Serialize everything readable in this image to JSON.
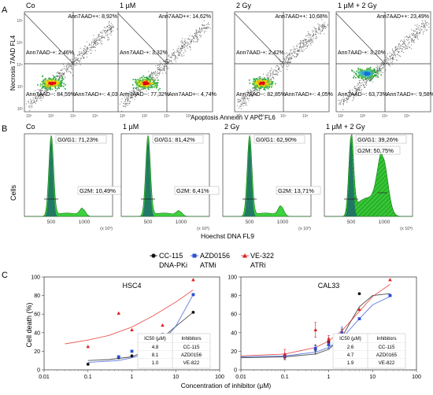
{
  "panel_letters": [
    "A",
    "B",
    "C"
  ],
  "chart_data": [
    {
      "type": "scatter",
      "panel": "A",
      "ylabel": "Necrosis 7AAD FL4",
      "xlabel": "Apoptosis Annexin V APC FL6",
      "tick_labels": [
        "10²",
        "10³",
        "10⁴",
        "10⁵",
        "10⁶"
      ],
      "plots": [
        {
          "title": "Co",
          "quadrants": {
            "ul": "Ann7AAD-+: 2,46%",
            "ur": "Ann7AAD++: 8,92%",
            "ll": "Ann7AAD--: 84,59%",
            "lr": "Ann7AAD+-: 4,03%"
          },
          "colors": {
            "core": "#e0000f",
            "mid": "#f6e00a",
            "outer": "#22a83a"
          }
        },
        {
          "title": "1 µM",
          "quadrants": {
            "ul": "Ann7AAD-+: 3,32%",
            "ur": "Ann7AAD++: 14,62%",
            "ll": "Ann7AAD--: 77,32%",
            "lr": "Ann7AAD+-: 4,74%"
          },
          "colors": {
            "core": "#e0000f",
            "mid": "#f6e00a",
            "outer": "#22a83a"
          }
        },
        {
          "title": "2 Gy",
          "quadrants": {
            "ul": "Ann7AAD-+: 2,42%",
            "ur": "Ann7AAD++: 10,68%",
            "ll": "Ann7AAD--: 82,85%",
            "lr": "Ann7AAD+-: 4,05%"
          },
          "colors": {
            "core": "#e0000f",
            "mid": "#f6e00a",
            "outer": "#22a83a"
          }
        },
        {
          "title": "1 µM + 2 Gy",
          "quadrants": {
            "ul": "Ann7AAD-+: 3,20%",
            "ur": "Ann7AAD++: 23,49%",
            "ll": "Ann7AAD--: 63,73%",
            "lr": "Ann7AAD+-: 9,58%"
          },
          "colors": {
            "core": "#1a6ad8",
            "mid": "#38c0c8",
            "outer": "#28a040"
          }
        }
      ]
    },
    {
      "type": "area",
      "panel": "B",
      "ylabel": "Cells",
      "xlabel": "Hoechst DNA FL9",
      "x_ticks": [
        500,
        1000
      ],
      "x_unit": "(x 10³)",
      "plots": [
        {
          "title": "Co",
          "g0g1": "G0/G1: 71,23%",
          "g2m": "G2M: 10,49%",
          "g2_height": 0.09,
          "hatched": false
        },
        {
          "title": "1 µM",
          "g0g1": "G0/G1: 81,42%",
          "g2m": "G2M: 6,41%",
          "g2_height": 0.06,
          "hatched": false
        },
        {
          "title": "2 Gy",
          "g0g1": "G0/G1: 62,90%",
          "g2m": "G2M: 13,71%",
          "g2_height": 0.12,
          "hatched": false
        },
        {
          "title": "1 µM + 2 Gy",
          "g0g1": "G0/G1: 39,26%",
          "g2m": "G2M: 50,75%",
          "g2_height": 0.72,
          "hatched": true
        }
      ]
    },
    {
      "type": "scatter",
      "panel": "C",
      "legend": [
        {
          "name": "CC-115",
          "sub": "DNA-PKi",
          "color": "#111111",
          "marker": "circle"
        },
        {
          "name": "AZD0156",
          "sub": "ATMi",
          "color": "#2a4fd6",
          "marker": "square"
        },
        {
          "name": "VE-322",
          "sub": "ATRi",
          "color": "#e02020",
          "marker": "triangle"
        }
      ],
      "ylabel": "Cell death (%)",
      "xlabel": "Concentration of inhibitor (µM)",
      "xscale": "log",
      "xlim": [
        0.01,
        100
      ],
      "ylim": [
        0,
        100
      ],
      "x_ticks": [
        "0.01",
        "0.1",
        "1",
        "10",
        "100"
      ],
      "y_ticks": [
        0,
        20,
        40,
        60,
        80,
        100
      ],
      "plots": [
        {
          "title": "HSC4",
          "table": {
            "header": [
              "IC50 (µM)",
              "Inhibitors"
            ],
            "rows": [
              [
                "4.8",
                "CC-115"
              ],
              [
                "8.1",
                "AZD0156"
              ],
              [
                "1.0",
                "VE-822"
              ]
            ]
          },
          "series": [
            {
              "name": "CC-115",
              "x": [
                0.1,
                0.5,
                1,
                2,
                5,
                25
              ],
              "y": [
                6,
                13,
                15,
                18,
                30,
                62
              ],
              "err": [
                0,
                0,
                0,
                0,
                0,
                0
              ]
            },
            {
              "name": "AZD0156",
              "x": [
                0.5,
                1,
                2,
                5,
                25
              ],
              "y": [
                14,
                20,
                24,
                38,
                81
              ],
              "err": [
                0,
                0,
                0,
                0,
                0
              ]
            },
            {
              "name": "VE-322",
              "x": [
                0.1,
                0.5,
                1,
                5,
                25
              ],
              "y": [
                25,
                61,
                43,
                48,
                97
              ],
              "err": [
                0,
                0,
                0,
                0,
                0
              ]
            }
          ],
          "fits": [
            {
              "name": "CC-115",
              "x": [
                0.1,
                0.3,
                1,
                2,
                4,
                8,
                25
              ],
              "y": [
                10,
                11,
                14,
                20,
                30,
                43,
                62
              ]
            },
            {
              "name": "AZD0156",
              "x": [
                0.1,
                0.5,
                1,
                2,
                5,
                10,
                25
              ],
              "y": [
                8,
                10,
                13,
                17,
                30,
                47,
                81
              ]
            },
            {
              "name": "VE-322",
              "x": [
                0.03,
                0.1,
                0.3,
                1,
                3,
                10,
                25
              ],
              "y": [
                28,
                32,
                37,
                46,
                58,
                73,
                86
              ]
            }
          ]
        },
        {
          "title": "CAL33",
          "table": {
            "header": [
              "IC50 (µM)",
              "Inhibitors"
            ],
            "rows": [
              [
                "2.6",
                "CC-115"
              ],
              [
                "4.7",
                "AZD0165"
              ],
              [
                "1.9",
                "VE-822"
              ]
            ]
          },
          "series": [
            {
              "name": "CC-115",
              "x": [
                0.1,
                0.5,
                1,
                2,
                5,
                25
              ],
              "y": [
                14,
                22,
                30,
                36,
                82,
                80
              ],
              "err": [
                3,
                5,
                4,
                8,
                0,
                0
              ]
            },
            {
              "name": "AZD0156",
              "x": [
                0.1,
                0.5,
                1,
                2,
                5,
                25
              ],
              "y": [
                15,
                23,
                27,
                40,
                55,
                80
              ],
              "err": [
                2,
                3,
                4,
                6,
                0,
                0
              ]
            },
            {
              "name": "VE-322",
              "x": [
                0.1,
                0.5,
                1,
                2,
                5,
                25
              ],
              "y": [
                17,
                43,
                33,
                35,
                65,
                97
              ],
              "err": [
                5,
                8,
                4,
                8,
                0,
                0
              ]
            }
          ],
          "fits": [
            {
              "name": "CC-115",
              "x": [
                0.01,
                0.1,
                0.5,
                1,
                2,
                3,
                5,
                10,
                25
              ],
              "y": [
                13,
                14,
                17,
                22,
                35,
                50,
                68,
                80,
                82
              ]
            },
            {
              "name": "AZD0156",
              "x": [
                0.01,
                0.1,
                0.5,
                1,
                2,
                5,
                10,
                25
              ],
              "y": [
                14,
                15,
                19,
                24,
                34,
                55,
                70,
                79
              ]
            },
            {
              "name": "VE-322",
              "x": [
                0.01,
                0.1,
                0.5,
                1,
                2,
                5,
                10,
                25
              ],
              "y": [
                15,
                17,
                24,
                31,
                42,
                63,
                79,
                92
              ]
            }
          ]
        }
      ]
    }
  ]
}
